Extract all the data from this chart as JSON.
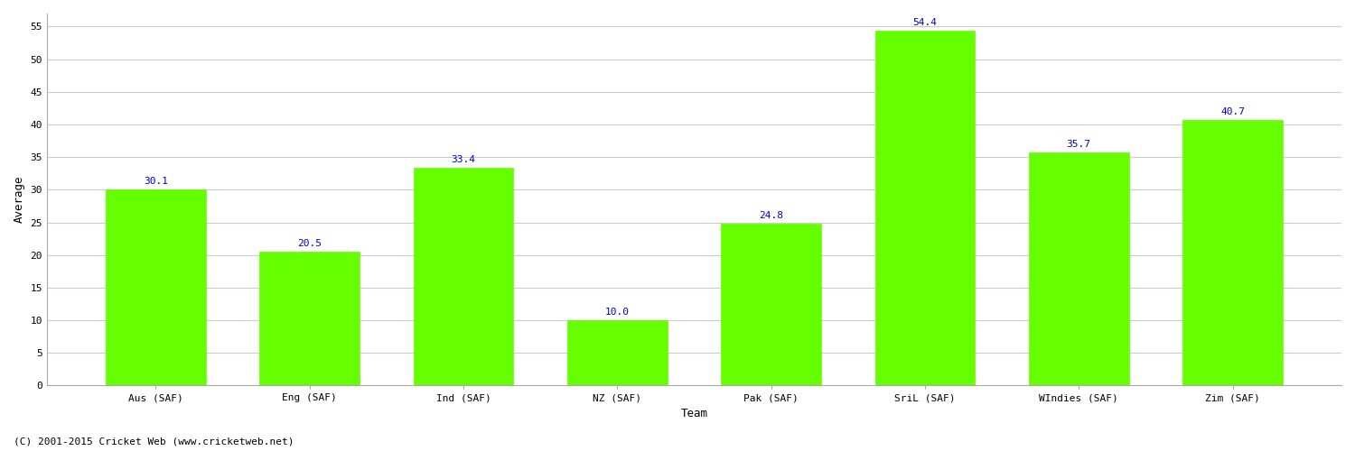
{
  "categories": [
    "Aus (SAF)",
    "Eng (SAF)",
    "Ind (SAF)",
    "NZ (SAF)",
    "Pak (SAF)",
    "SriL (SAF)",
    "WIndies (SAF)",
    "Zim (SAF)"
  ],
  "values": [
    30.1,
    20.5,
    33.4,
    10.0,
    24.8,
    54.4,
    35.7,
    40.7
  ],
  "bar_color": "#66ff00",
  "bar_edge_color": "#66ff00",
  "label_color": "#0000cc",
  "xlabel": "Team",
  "ylabel": "Average",
  "ylim": [
    0,
    57
  ],
  "yticks": [
    0,
    5,
    10,
    15,
    20,
    25,
    30,
    35,
    40,
    45,
    50,
    55
  ],
  "background_color": "#ffffff",
  "grid_color": "#cccccc",
  "footer_text": "(C) 2001-2015 Cricket Web (www.cricketweb.net)",
  "axis_label_fontsize": 9,
  "tick_fontsize": 8,
  "value_label_fontsize": 8,
  "footer_fontsize": 8,
  "bar_width": 0.65
}
